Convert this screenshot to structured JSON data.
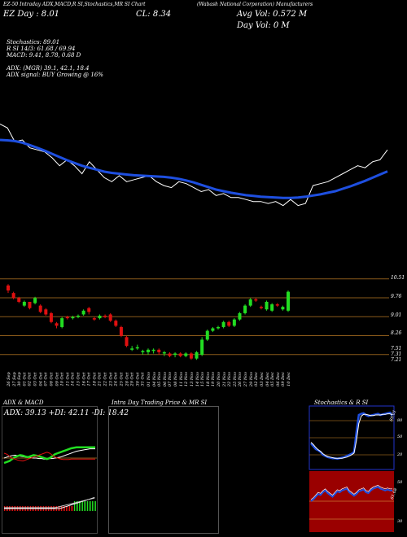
{
  "header": {
    "ticker_line": "EZ-50 Intraday ADX,MACD,R SI,Stochastics,MR SI Chart",
    "tag_line": "(Wabash National Corporation) Manufacturers",
    "day_line": "EZ Day : 8.01",
    "cl": "CL: 8.34",
    "avg_vol": "Avg Vol: 0.572  M",
    "day_vol": "Day Vol: 0  M",
    "stochastics": "Stochastics: 89.01",
    "rsi": "R                    SI 14/3: 61.68  /  69.94",
    "macd": "MACD: 9.41,  8.78,  0.68  D",
    "adx": "ADX:                              (MGR) 39.1,  42.1,  18.4",
    "adx_signal": "ADX  signal:                             BUY Growing @ 16%"
  },
  "price_axis": {
    "ticks": [
      "10.51",
      "9.76",
      "9.01",
      "8.26",
      "7.51",
      "7.31",
      "7.21"
    ]
  },
  "dates": [
    "26 Sep",
    "27 Sep",
    "30 Sep",
    "01 Oct",
    "02 Oct",
    "03 Oct",
    "04 Oct",
    "07 Oct",
    "08 Oct",
    "09 Oct",
    "10 Oct",
    "11 Oct",
    "14 Oct",
    "15 Oct",
    "16 Oct",
    "17 Oct",
    "18 Oct",
    "21 Oct",
    "22 Oct",
    "23 Oct",
    "24 Oct",
    "25 Oct",
    "28 Oct",
    "29 Oct",
    "30 Oct",
    "31 Oct",
    "01 Nov",
    "04 Nov",
    "05 Nov",
    "06 Nov",
    "07 Nov",
    "08 Nov",
    "11 Nov",
    "12 Nov",
    "13 Nov",
    "14 Nov",
    "15 Nov",
    "18 Nov",
    "19 Nov",
    "20 Nov",
    "21 Nov",
    "22 Nov",
    "25 Nov",
    "26 Nov",
    "27 Nov",
    "29 Nov",
    "02 Dec",
    "03 Dec",
    "04 Dec",
    "05 Dec",
    "06 Dec",
    "09 Dec",
    "10 Dec"
  ],
  "panels": {
    "adx_title": "ADX  & MACD",
    "adx_values": "ADX: 39.13  +DI: 42.11  -DI: 18.42",
    "intra_title": "Intra  Day Trading Price  & MR                    SI",
    "stoch_title": "Stochastics  & R                    SI",
    "stoch_top_label": "89.01",
    "stoch_ticks": [
      "80",
      "50",
      "20"
    ],
    "rsi_ticks": [
      "50",
      "30",
      "61.68"
    ]
  },
  "colors": {
    "bull": "#22dd22",
    "bear": "#e01010",
    "ma": "#1e4fe0",
    "grid_orange": "#8a5a1a",
    "rsi_bg": "#9a0000"
  },
  "chart_data": [
    {
      "type": "line",
      "name": "main-price-overlay",
      "x": [
        1,
        2,
        3,
        4,
        5,
        6,
        7,
        8,
        9,
        10,
        11,
        12,
        13,
        14,
        15,
        16,
        17,
        18,
        19,
        20,
        21,
        22,
        23,
        24,
        25,
        26,
        27,
        28,
        29,
        30,
        31,
        32,
        33,
        34,
        35,
        36,
        37,
        38,
        39,
        40,
        41,
        42,
        43,
        44,
        45,
        46,
        47,
        48,
        49,
        50,
        51,
        52,
        53
      ],
      "series": [
        {
          "name": "",
          "values": [
            9.65,
            9.55,
            9.2,
            9.25,
            9.05,
            9.0,
            8.95,
            8.8,
            8.6,
            8.75,
            8.6,
            8.4,
            8.7,
            8.5,
            8.3,
            8.2,
            8.35,
            8.2,
            8.25,
            8.3,
            8.35,
            8.2,
            8.1,
            8.05,
            8.2,
            8.15,
            8.05,
            7.95,
            8.0,
            7.85,
            7.9,
            7.8,
            7.8,
            7.75,
            7.7,
            7.7,
            7.65,
            7.7,
            7.6,
            7.75,
            7.6,
            7.65,
            8.1,
            8.15,
            8.2,
            8.3,
            8.4,
            8.5,
            8.6,
            8.55,
            8.7,
            8.75,
            9.0
          ]
        },
        {
          "name": "",
          "values": [
            9.25,
            9.24,
            9.22,
            9.18,
            9.12,
            9.05,
            8.98,
            8.9,
            8.82,
            8.74,
            8.67,
            8.6,
            8.55,
            8.5,
            8.45,
            8.42,
            8.4,
            8.38,
            8.36,
            8.35,
            8.34,
            8.33,
            8.32,
            8.3,
            8.27,
            8.23,
            8.18,
            8.12,
            8.06,
            8.0,
            7.96,
            7.92,
            7.89,
            7.86,
            7.84,
            7.82,
            7.81,
            7.8,
            7.79,
            7.79,
            7.8,
            7.82,
            7.85,
            7.88,
            7.92,
            7.96,
            8.02,
            8.08,
            8.15,
            8.22,
            8.3,
            8.38,
            8.46
          ]
        }
      ]
    },
    {
      "type": "candlestick",
      "name": "daily-candles",
      "categories_ref": "dates",
      "ylim": [
        7.21,
        10.6
      ],
      "candles": [
        {
          "o": 10.25,
          "c": 10.05,
          "h": 10.3,
          "l": 9.95
        },
        {
          "o": 9.95,
          "c": 9.75,
          "h": 10.0,
          "l": 9.7
        },
        {
          "o": 9.75,
          "c": 9.6,
          "h": 9.8,
          "l": 9.55
        },
        {
          "o": 9.45,
          "c": 9.6,
          "h": 9.65,
          "l": 9.4
        },
        {
          "o": 9.6,
          "c": 9.35,
          "h": 9.6,
          "l": 9.3
        },
        {
          "o": 9.55,
          "c": 9.75,
          "h": 9.8,
          "l": 9.5
        },
        {
          "o": 9.45,
          "c": 9.2,
          "h": 9.5,
          "l": 9.15
        },
        {
          "o": 9.3,
          "c": 9.1,
          "h": 9.35,
          "l": 9.05
        },
        {
          "o": 9.15,
          "c": 8.8,
          "h": 9.2,
          "l": 8.75
        },
        {
          "o": 8.75,
          "c": 8.65,
          "h": 8.8,
          "l": 8.55
        },
        {
          "o": 8.6,
          "c": 8.95,
          "h": 9.0,
          "l": 8.55
        },
        {
          "o": 9.0,
          "c": 8.95,
          "h": 9.05,
          "l": 8.9
        },
        {
          "o": 8.95,
          "c": 9.0,
          "h": 9.05,
          "l": 8.9
        },
        {
          "o": 9.0,
          "c": 9.05,
          "h": 9.1,
          "l": 8.95
        },
        {
          "o": 9.1,
          "c": 9.25,
          "h": 9.3,
          "l": 9.05
        },
        {
          "o": 9.35,
          "c": 9.2,
          "h": 9.4,
          "l": 9.1
        },
        {
          "o": 8.95,
          "c": 8.9,
          "h": 9.0,
          "l": 8.85
        },
        {
          "o": 8.95,
          "c": 9.05,
          "h": 9.1,
          "l": 8.9
        },
        {
          "o": 9.05,
          "c": 9.0,
          "h": 9.1,
          "l": 8.95
        },
        {
          "o": 9.1,
          "c": 8.85,
          "h": 9.15,
          "l": 8.8
        },
        {
          "o": 8.85,
          "c": 8.65,
          "h": 8.9,
          "l": 8.6
        },
        {
          "o": 8.6,
          "c": 8.25,
          "h": 8.65,
          "l": 8.2
        },
        {
          "o": 8.2,
          "c": 7.85,
          "h": 8.25,
          "l": 7.8
        },
        {
          "o": 7.7,
          "c": 7.75,
          "h": 7.85,
          "l": 7.65
        },
        {
          "o": 7.75,
          "c": 7.8,
          "h": 7.9,
          "l": 7.7
        },
        {
          "o": 7.6,
          "c": 7.65,
          "h": 7.7,
          "l": 7.5
        },
        {
          "o": 7.6,
          "c": 7.7,
          "h": 7.75,
          "l": 7.5
        },
        {
          "o": 7.65,
          "c": 7.7,
          "h": 7.75,
          "l": 7.55
        },
        {
          "o": 7.7,
          "c": 7.6,
          "h": 7.75,
          "l": 7.5
        },
        {
          "o": 7.55,
          "c": 7.6,
          "h": 7.65,
          "l": 7.45
        },
        {
          "o": 7.55,
          "c": 7.45,
          "h": 7.6,
          "l": 7.4
        },
        {
          "o": 7.5,
          "c": 7.55,
          "h": 7.6,
          "l": 7.4
        },
        {
          "o": 7.55,
          "c": 7.45,
          "h": 7.6,
          "l": 7.4
        },
        {
          "o": 7.45,
          "c": 7.55,
          "h": 7.6,
          "l": 7.4
        },
        {
          "o": 7.55,
          "c": 7.35,
          "h": 7.6,
          "l": 7.3
        },
        {
          "o": 7.35,
          "c": 7.6,
          "h": 7.65,
          "l": 7.3
        },
        {
          "o": 7.5,
          "c": 8.1,
          "h": 8.2,
          "l": 7.45
        },
        {
          "o": 8.1,
          "c": 8.45,
          "h": 8.5,
          "l": 8.05
        },
        {
          "o": 8.45,
          "c": 8.55,
          "h": 8.6,
          "l": 8.4
        },
        {
          "o": 8.55,
          "c": 8.6,
          "h": 8.65,
          "l": 8.5
        },
        {
          "o": 8.6,
          "c": 8.8,
          "h": 8.85,
          "l": 8.55
        },
        {
          "o": 8.8,
          "c": 8.65,
          "h": 8.85,
          "l": 8.6
        },
        {
          "o": 8.65,
          "c": 8.9,
          "h": 8.95,
          "l": 8.6
        },
        {
          "o": 8.9,
          "c": 9.15,
          "h": 9.2,
          "l": 8.85
        },
        {
          "o": 9.15,
          "c": 9.45,
          "h": 9.5,
          "l": 9.1
        },
        {
          "o": 9.45,
          "c": 9.7,
          "h": 9.75,
          "l": 9.4
        },
        {
          "o": 9.7,
          "c": 9.65,
          "h": 9.75,
          "l": 9.6
        },
        {
          "o": 9.4,
          "c": 9.35,
          "h": 9.45,
          "l": 9.3
        },
        {
          "o": 9.3,
          "c": 9.6,
          "h": 9.65,
          "l": 9.25
        },
        {
          "o": 9.25,
          "c": 9.5,
          "h": 9.55,
          "l": 9.2
        },
        {
          "o": 9.5,
          "c": 9.45,
          "h": 9.55,
          "l": 9.4
        },
        {
          "o": 9.3,
          "c": 9.4,
          "h": 9.45,
          "l": 9.25
        },
        {
          "o": 9.25,
          "c": 10.0,
          "h": 10.05,
          "l": 9.2
        }
      ]
    },
    {
      "type": "line",
      "name": "adx-macd",
      "series": [
        {
          "name": "ADX",
          "values": [
            20,
            22,
            24,
            25,
            26,
            25,
            24,
            23,
            22,
            22,
            21,
            20,
            20,
            19,
            19,
            18,
            18,
            19,
            19,
            20,
            21,
            22,
            24,
            26,
            28,
            30,
            32,
            34,
            35,
            36,
            37,
            38,
            39,
            39,
            39
          ]
        },
        {
          "name": "+DI",
          "values": [
            10,
            12,
            14,
            18,
            22,
            24,
            26,
            25,
            23,
            22,
            24,
            26,
            25,
            24,
            22,
            20,
            18,
            20,
            24,
            28,
            30,
            32,
            34,
            36,
            38,
            40,
            41,
            42,
            42,
            42,
            42,
            42,
            42,
            42,
            42
          ]
        },
        {
          "name": "-DI",
          "values": [
            30,
            28,
            24,
            20,
            18,
            16,
            15,
            14,
            16,
            18,
            20,
            22,
            24,
            26,
            28,
            30,
            32,
            30,
            26,
            22,
            20,
            18,
            17,
            17,
            17,
            18,
            18,
            18,
            18,
            18,
            18,
            18,
            18,
            18,
            18
          ]
        }
      ]
    },
    {
      "type": "line",
      "name": "stochastics",
      "series": [
        {
          "name": "",
          "values": [
            40,
            35,
            30,
            28,
            25,
            20,
            18,
            16,
            15,
            14,
            14,
            13,
            14,
            15,
            16,
            18,
            20,
            22,
            25,
            60,
            90,
            92,
            93,
            90,
            88,
            89,
            90,
            91,
            92,
            90,
            91,
            92,
            93,
            94,
            89
          ]
        },
        {
          "name": "",
          "values": [
            42,
            38,
            33,
            29,
            26,
            22,
            19,
            17,
            16,
            15,
            14,
            14,
            14,
            14,
            15,
            16,
            18,
            20,
            23,
            45,
            75,
            88,
            91,
            91,
            90,
            89,
            89,
            90,
            90,
            90,
            91,
            91,
            92,
            92,
            90
          ]
        }
      ]
    },
    {
      "type": "line",
      "name": "rsi",
      "series": [
        {
          "name": "",
          "values": [
            50,
            52,
            55,
            58,
            57,
            60,
            62,
            59,
            57,
            55,
            58,
            61,
            60,
            62,
            63,
            64,
            60,
            58,
            56,
            58,
            61,
            62,
            63,
            60,
            59,
            62,
            64,
            65,
            66,
            64,
            63,
            62,
            63,
            62,
            62
          ]
        }
      ]
    }
  ]
}
